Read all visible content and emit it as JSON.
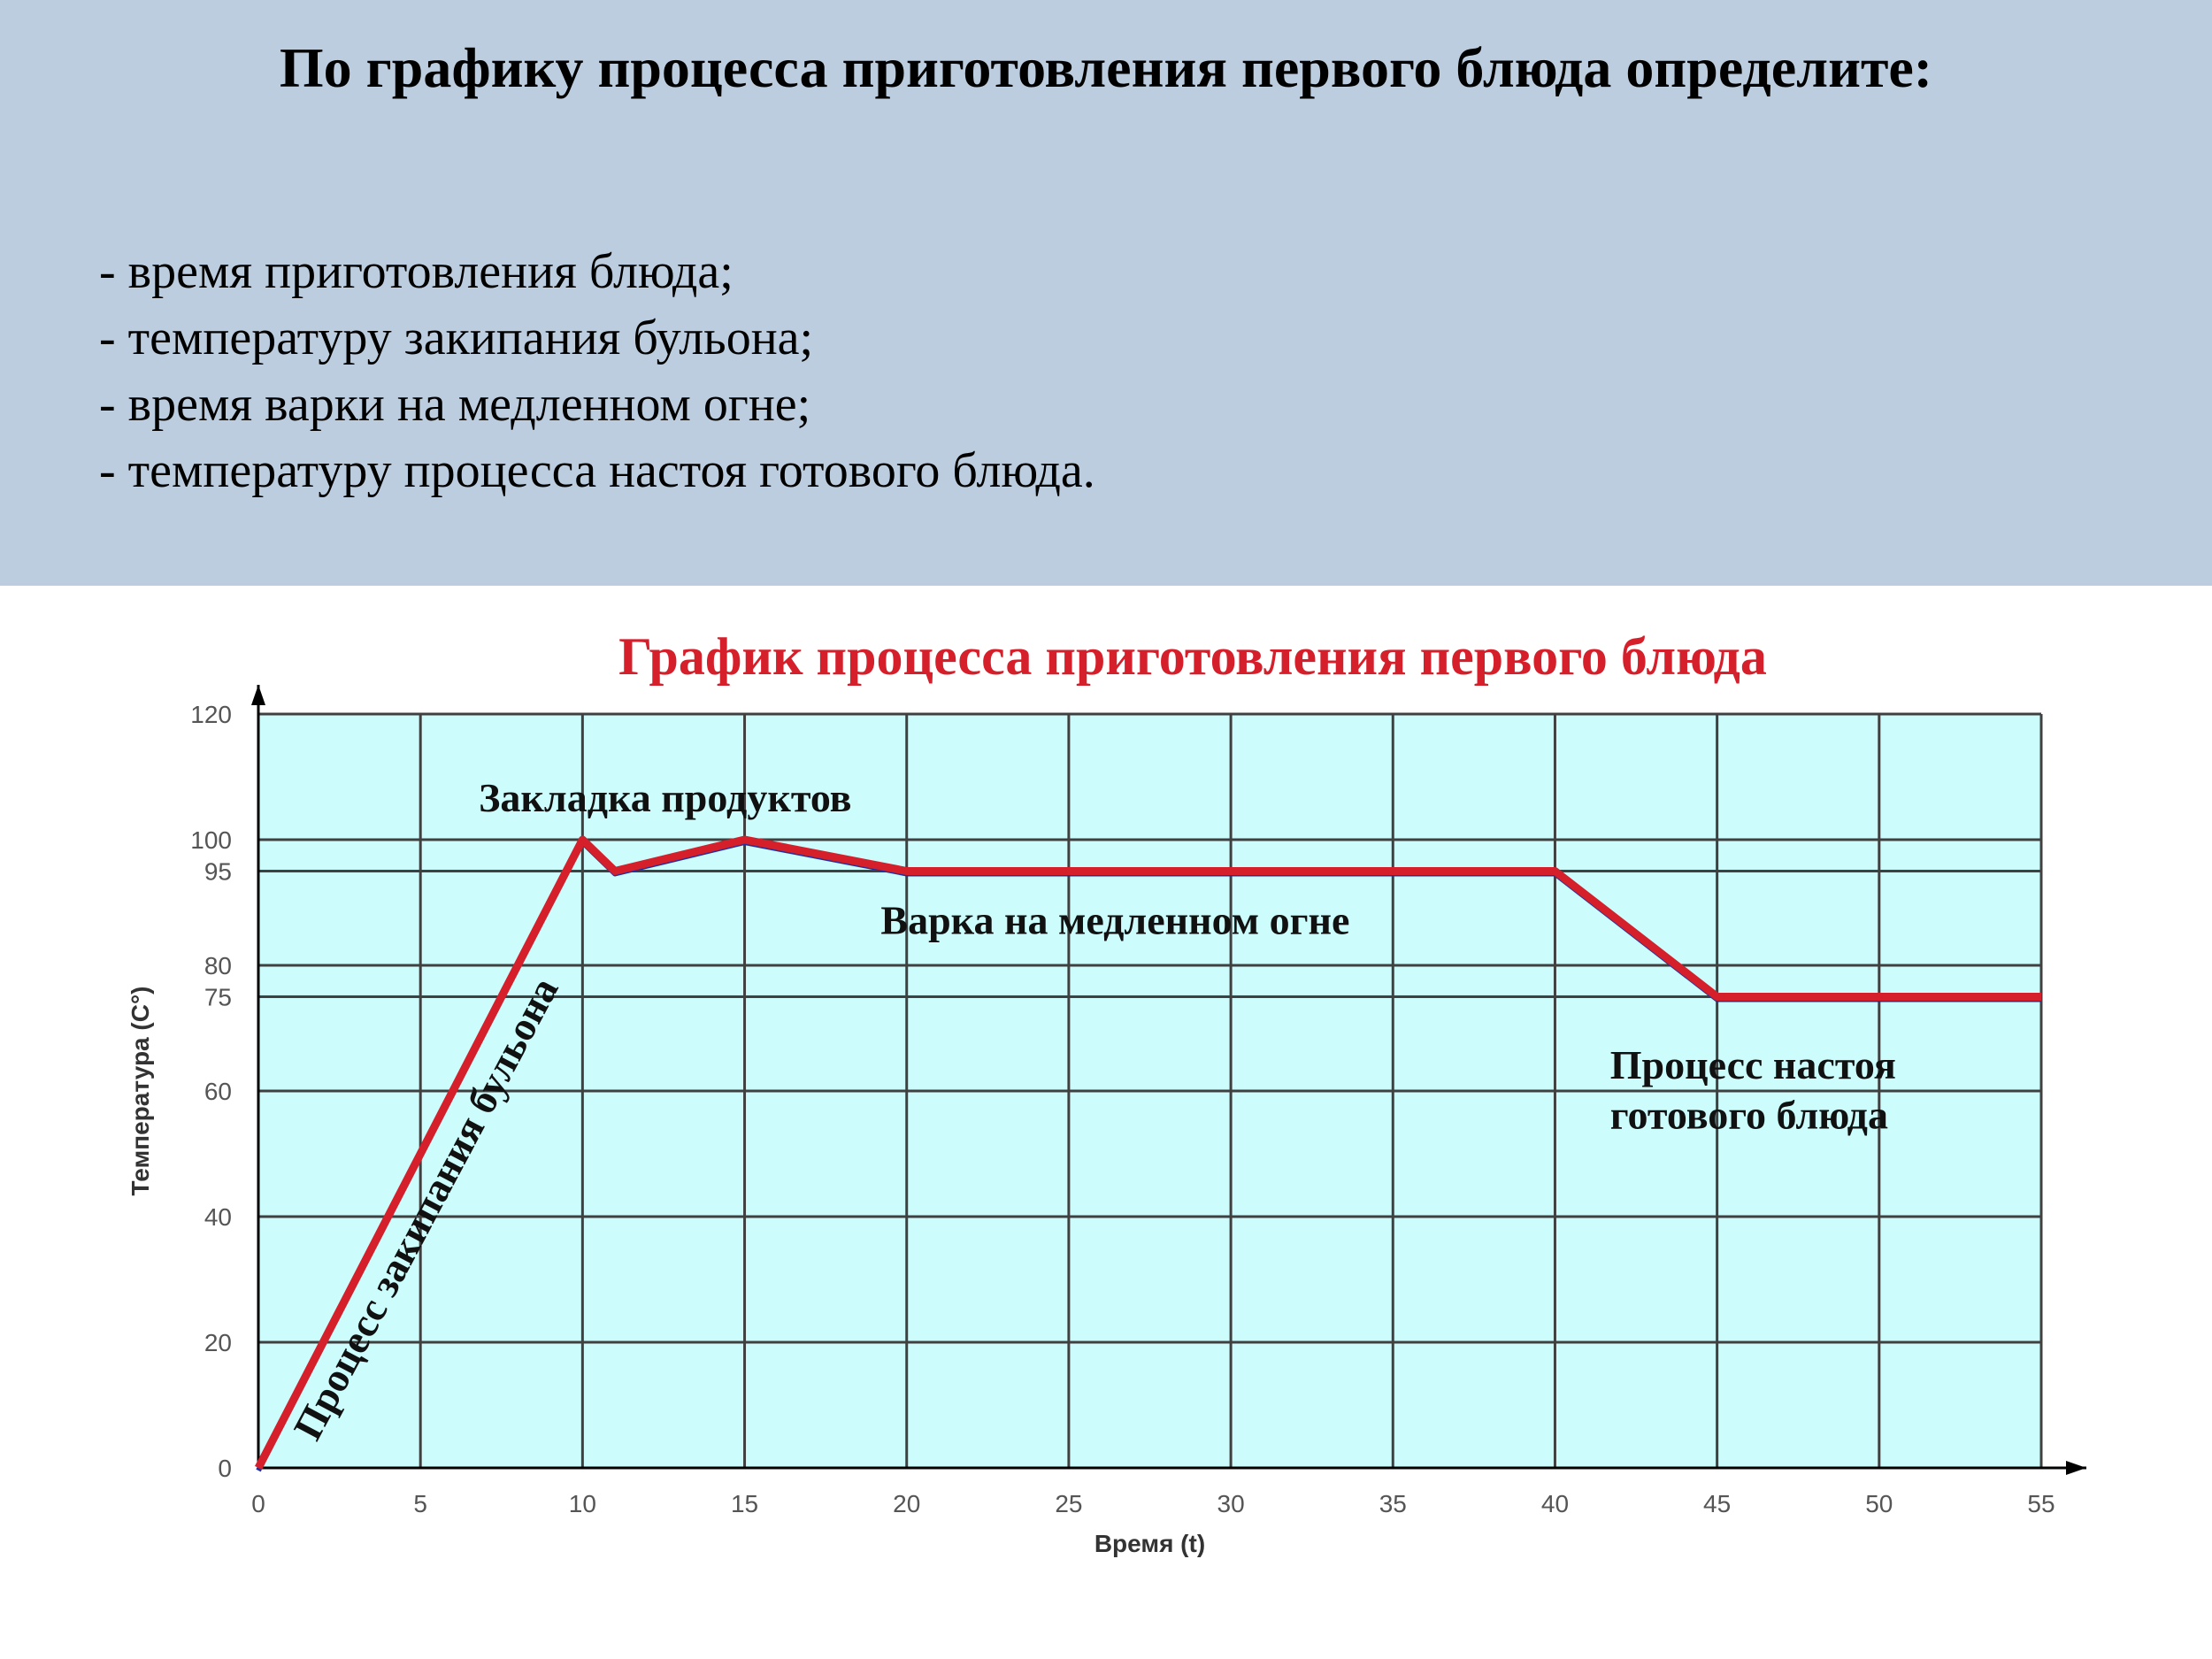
{
  "slide": {
    "title": "По графику процесса приготовления первого блюда определите:",
    "tasks": [
      "- время приготовления блюда;",
      "- температуру закипания бульона;",
      "- время варки на медленном огне;",
      "- температуру процесса настоя готового блюда."
    ]
  },
  "colors": {
    "header_bg": "#bccddf",
    "plot_bg": "#ccfcfc",
    "line": "#d51f2b",
    "title": "#d51f2b"
  },
  "chart_data": {
    "type": "line",
    "title": "График процесса приготовления первого блюда",
    "xlabel": "Время (t)",
    "ylabel": "Температура (С°)",
    "xlim": [
      0,
      55
    ],
    "ylim": [
      0,
      120
    ],
    "x_ticks": [
      0,
      5,
      10,
      15,
      20,
      25,
      30,
      35,
      40,
      45,
      50,
      55
    ],
    "y_ticks": [
      0,
      20,
      40,
      60,
      75,
      80,
      95,
      100,
      120
    ],
    "grid": true,
    "series": [
      {
        "x": [
          0,
          10,
          11,
          15,
          20,
          40,
          45,
          55
        ],
        "y": [
          0,
          100,
          95,
          100,
          95,
          95,
          75,
          75
        ]
      }
    ],
    "annotations": [
      {
        "text": "Закладка продуктов",
        "x": 6.8,
        "y": 104.5
      },
      {
        "text": "Варка на медленном огне",
        "x": 19.2,
        "y": 85
      },
      {
        "text": "Процесс настоя",
        "x": 41.7,
        "y": 62
      },
      {
        "text": "готового блюда",
        "x": 41.7,
        "y": 54
      },
      {
        "text": "Процесс закипания бульона",
        "x": 1.8,
        "y": 4,
        "angle": -62
      }
    ]
  }
}
